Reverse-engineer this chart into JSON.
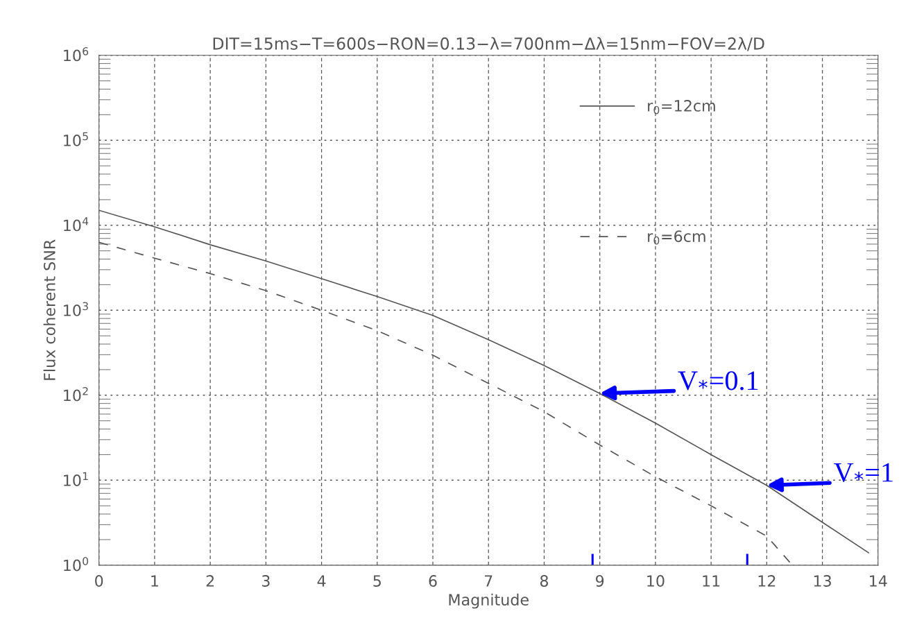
{
  "chart_data": {
    "type": "line",
    "title": "DIT=15ms−T=600s−RON=0.13−λ=700nm−Δλ=15nm−FOV=2λ/D",
    "xlabel": "Magnitude",
    "ylabel": "Flux coherent SNR",
    "series": [
      {
        "name": "r$_{0}$=12cm",
        "color": "#555555",
        "line_style": "solid",
        "x": [
          0,
          1,
          2,
          3,
          4,
          5,
          6,
          7,
          8,
          9,
          10,
          11,
          12,
          13,
          13.83
        ],
        "values": [
          15000,
          9600,
          5900,
          3800,
          2350,
          1450,
          870,
          450,
          224,
          105,
          47,
          20,
          8.7,
          3.2,
          1.4
        ]
      },
      {
        "name": "r$_{0}$=6cm",
        "color": "#555555",
        "line_style": "dashed",
        "x": [
          0,
          1,
          2,
          3,
          4,
          5,
          6,
          7,
          8,
          9,
          10,
          11,
          12,
          12.46
        ],
        "values": [
          6300,
          4100,
          2700,
          1700,
          1000,
          575,
          296,
          138,
          64,
          26,
          11,
          5.0,
          2.2,
          1.0
        ]
      },
      {
        "color": "#0000ff",
        "line_style": "solid",
        "x": [
          8.87,
          8.87
        ],
        "values": [
          1,
          1.32
        ]
      },
      {
        "color": "#0000ff",
        "line_style": "solid",
        "x": [
          11.65,
          11.65
        ],
        "values": [
          1,
          1.32
        ]
      }
    ],
    "log": "y",
    "xlim": [
      0,
      14
    ],
    "xticks": [
      0,
      1,
      2,
      3,
      4,
      5,
      6,
      7,
      8,
      9,
      10,
      11,
      12,
      13,
      14
    ],
    "ylim": [
      1,
      1000000
    ],
    "yticks": [
      {
        "value": 1,
        "label": "10$^{0}$"
      },
      {
        "value": 10,
        "label": "10$^{1}$"
      },
      {
        "value": 100,
        "label": "10$^{2}$"
      },
      {
        "value": 1000,
        "label": "10$^{3}$"
      },
      {
        "value": 10000,
        "label": "10$^{4}$"
      },
      {
        "value": 100000,
        "label": "10$^{5}$"
      },
      {
        "value": 1000000,
        "label": "10$^{6}$"
      }
    ],
    "grid": true,
    "legend": "top right",
    "marker": "none",
    "annotations": [
      {
        "text": "V$_{*}$=0.1",
        "x": 9,
        "y": 105
      },
      {
        "text": "V$_{*}$=1",
        "x": 12,
        "y": 8.7
      }
    ]
  }
}
